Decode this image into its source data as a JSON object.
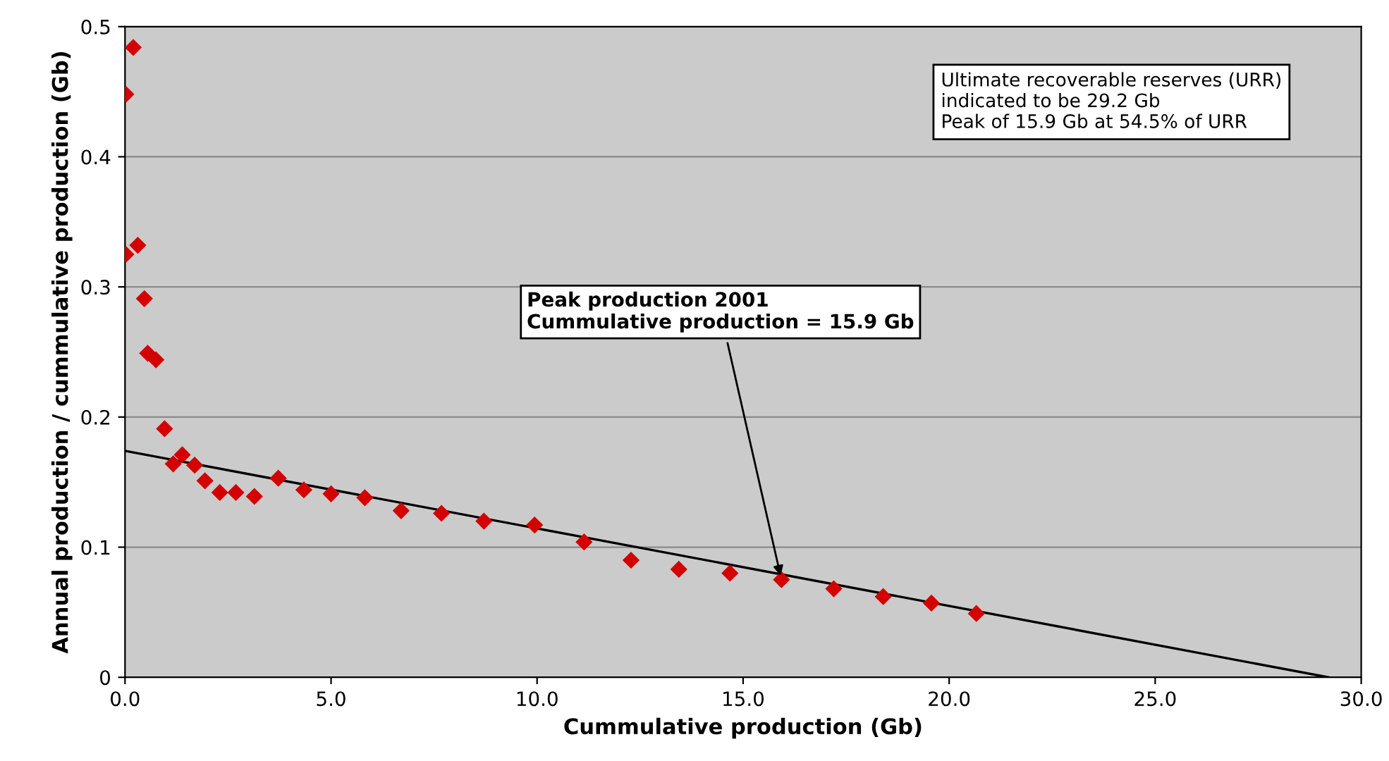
{
  "chart_data": {
    "type": "scatter",
    "xlabel": "Cummulative production (Gb)",
    "ylabel": "Annual production / cummulative production (Gb)",
    "x": [
      0.02,
      0.2,
      0.02,
      0.31,
      0.47,
      0.55,
      0.75,
      0.96,
      1.17,
      1.39,
      1.69,
      1.94,
      2.3,
      2.69,
      3.14,
      3.72,
      4.34,
      5.0,
      5.82,
      6.7,
      7.68,
      8.71,
      9.94,
      11.14,
      12.28,
      13.44,
      14.68,
      15.93,
      17.2,
      18.4,
      19.57,
      20.66
    ],
    "series": [
      {
        "color": "#d40000",
        "marker": "diamond",
        "values": [
          0.448,
          0.484,
          0.325,
          0.332,
          0.291,
          0.249,
          0.244,
          0.191,
          0.164,
          0.171,
          0.163,
          0.151,
          0.142,
          0.142,
          0.139,
          0.153,
          0.144,
          0.141,
          0.138,
          0.128,
          0.126,
          0.12,
          0.117,
          0.104,
          0.09,
          0.083,
          0.08,
          0.075,
          0.068,
          0.062,
          0.057,
          0.049
        ]
      },
      {
        "type": "line",
        "color": "#000000",
        "line_style": "solid",
        "x": [
          0,
          29.2
        ],
        "values": [
          0.174,
          0
        ]
      }
    ],
    "annotations": [
      {
        "text": "Peak production 2001\nCummulative production = 15.9 Gb",
        "x": 15.93,
        "y": 0.075
      },
      "Ultimate recoverable reserves (URR)\nindicated to be 29.2 Gb\nPeak of 15.9 Gb at 54.5% of URR"
    ],
    "xlim": [
      0,
      30
    ],
    "ylim": [
      0,
      0.5
    ],
    "xticks": [
      {
        "value": 0,
        "label": "0.0"
      },
      {
        "value": 5,
        "label": "5.0"
      },
      {
        "value": 10,
        "label": "10.0"
      },
      {
        "value": 15,
        "label": "15.0"
      },
      {
        "value": 20,
        "label": "20.0"
      },
      {
        "value": 25,
        "label": "25.0"
      },
      {
        "value": 30,
        "label": "30.0"
      }
    ],
    "yticks": [
      0,
      0.1,
      0.2,
      0.3,
      0.4,
      0.5
    ],
    "grid": "y",
    "legend": false
  }
}
